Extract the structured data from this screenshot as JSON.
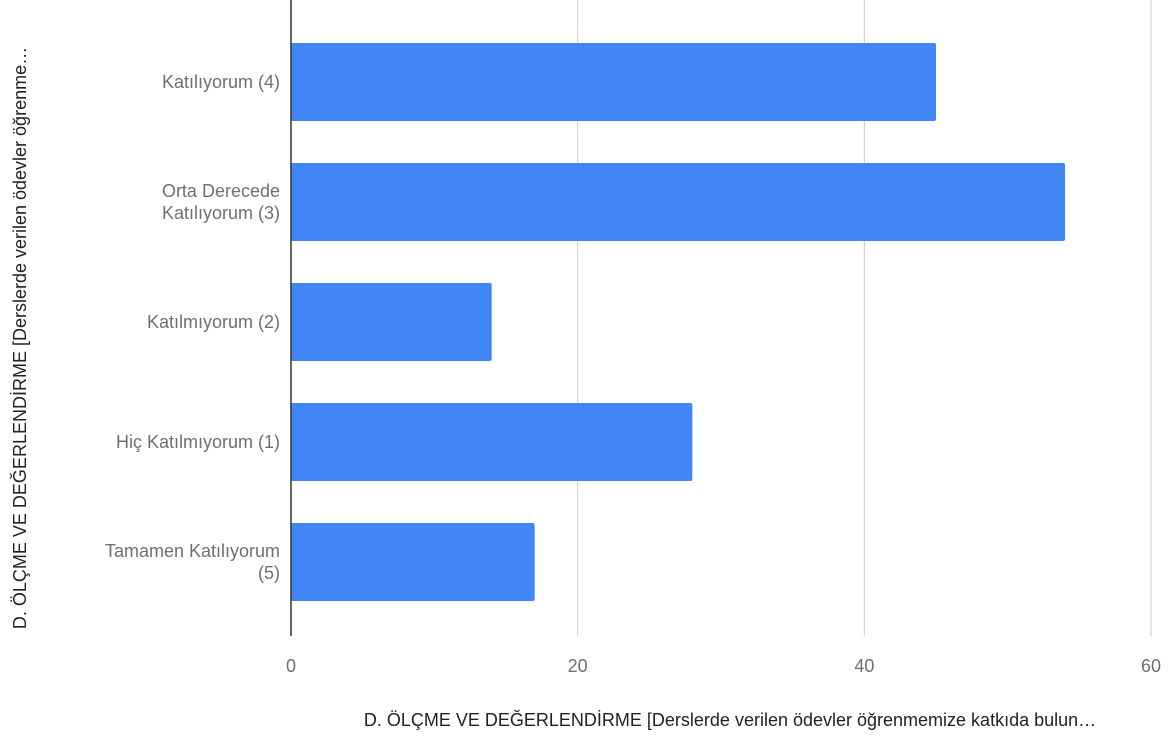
{
  "chart_data": {
    "type": "bar",
    "orientation": "horizontal",
    "categories": [
      "Katılıyorum (4)",
      "Orta Derecede Katılıyorum (3)",
      "Katılmıyorum (2)",
      "Hiç Katılmıyorum (1)",
      "Tamamen Katılıyorum (5)"
    ],
    "category_lines": [
      [
        "Katılıyorum (4)"
      ],
      [
        "Orta Derecede",
        "Katılıyorum (3)"
      ],
      [
        "Katılmıyorum (2)"
      ],
      [
        "Hiç Katılmıyorum (1)"
      ],
      [
        "Tamamen Katılıyorum",
        "(5)"
      ]
    ],
    "values": [
      45,
      54,
      14,
      28,
      17
    ],
    "xlabel": "D. ÖLÇME VE DEĞERLENDİRME [Derslerde verilen ödevler öğrenmemize katkıda bulun…",
    "ylabel": "D. ÖLÇME VE DEĞERLENDİRME [Derslerde verilen ödevler öğrenme…",
    "xlim": [
      0,
      60
    ],
    "xticks": [
      0,
      20,
      40,
      60
    ],
    "grid": true,
    "bar_color": "#4285f4",
    "grid_color": "#cccccc",
    "axis_color": "#333333"
  }
}
